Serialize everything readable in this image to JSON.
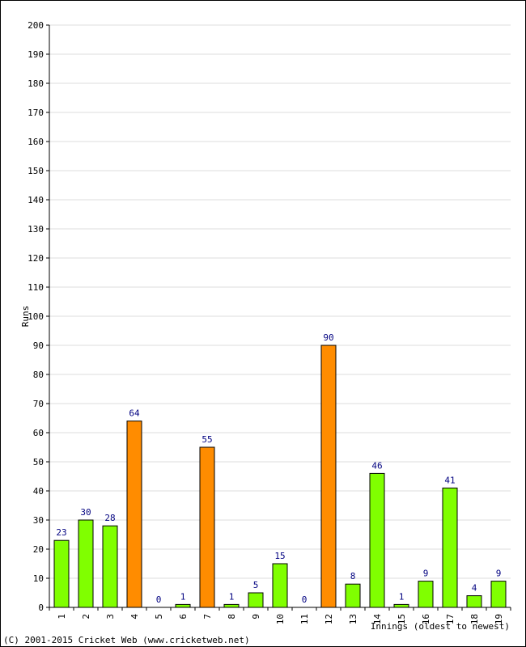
{
  "chart_data": {
    "type": "bar",
    "categories": [
      "1",
      "2",
      "3",
      "4",
      "5",
      "6",
      "7",
      "8",
      "9",
      "10",
      "11",
      "12",
      "13",
      "14",
      "15",
      "16",
      "17",
      "18",
      "19"
    ],
    "values": [
      23,
      30,
      28,
      64,
      0,
      1,
      55,
      1,
      5,
      15,
      0,
      90,
      8,
      46,
      1,
      9,
      41,
      4,
      9
    ],
    "highlight": [
      false,
      false,
      false,
      true,
      false,
      false,
      true,
      false,
      false,
      false,
      false,
      true,
      false,
      false,
      false,
      false,
      false,
      false,
      false
    ],
    "xlabel": "Innings (oldest to newest)",
    "ylabel": "Runs",
    "ylim": [
      0,
      200
    ],
    "ytick_step": 10,
    "grid": true,
    "colors": {
      "normal": "#80ff00",
      "highlight": "#ff8c00",
      "label": "#000080",
      "grid": "#dddddd",
      "border": "#000000"
    }
  },
  "footer": {
    "copyright": "(C) 2001-2015 Cricket Web (www.cricketweb.net)"
  }
}
